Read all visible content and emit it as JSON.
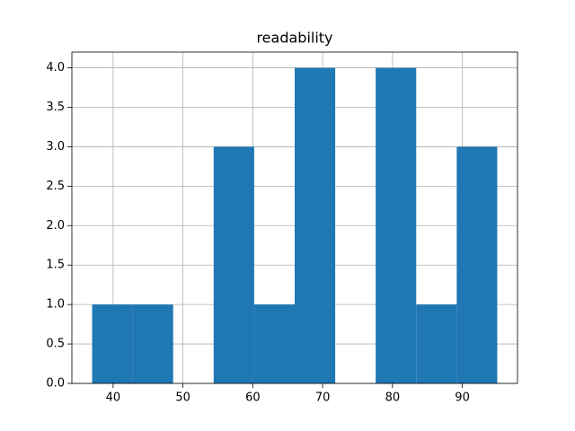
{
  "chart_data": {
    "type": "histogram",
    "title": "readability",
    "bins": [
      37,
      42.8,
      48.6,
      54.4,
      60.2,
      66,
      71.8,
      77.6,
      83.4,
      89.2,
      95
    ],
    "values": [
      1,
      1,
      0,
      3,
      1,
      4,
      0,
      4,
      1,
      3
    ],
    "color": "#1f77b4",
    "xlim": [
      34.1,
      97.9
    ],
    "xticks": [
      40,
      50,
      60,
      70,
      80,
      90
    ],
    "ylim": [
      0,
      4.2
    ],
    "yticks": [
      {
        "value": 0,
        "label": "0.0"
      },
      {
        "value": 0.5,
        "label": "0.5"
      },
      {
        "value": 1,
        "label": "1.0"
      },
      {
        "value": 1.5,
        "label": "1.5"
      },
      {
        "value": 2,
        "label": "2.0"
      },
      {
        "value": 2.5,
        "label": "2.5"
      },
      {
        "value": 3,
        "label": "3.0"
      },
      {
        "value": 3.5,
        "label": "3.5"
      },
      {
        "value": 4,
        "label": "4.0"
      }
    ],
    "grid": true
  }
}
